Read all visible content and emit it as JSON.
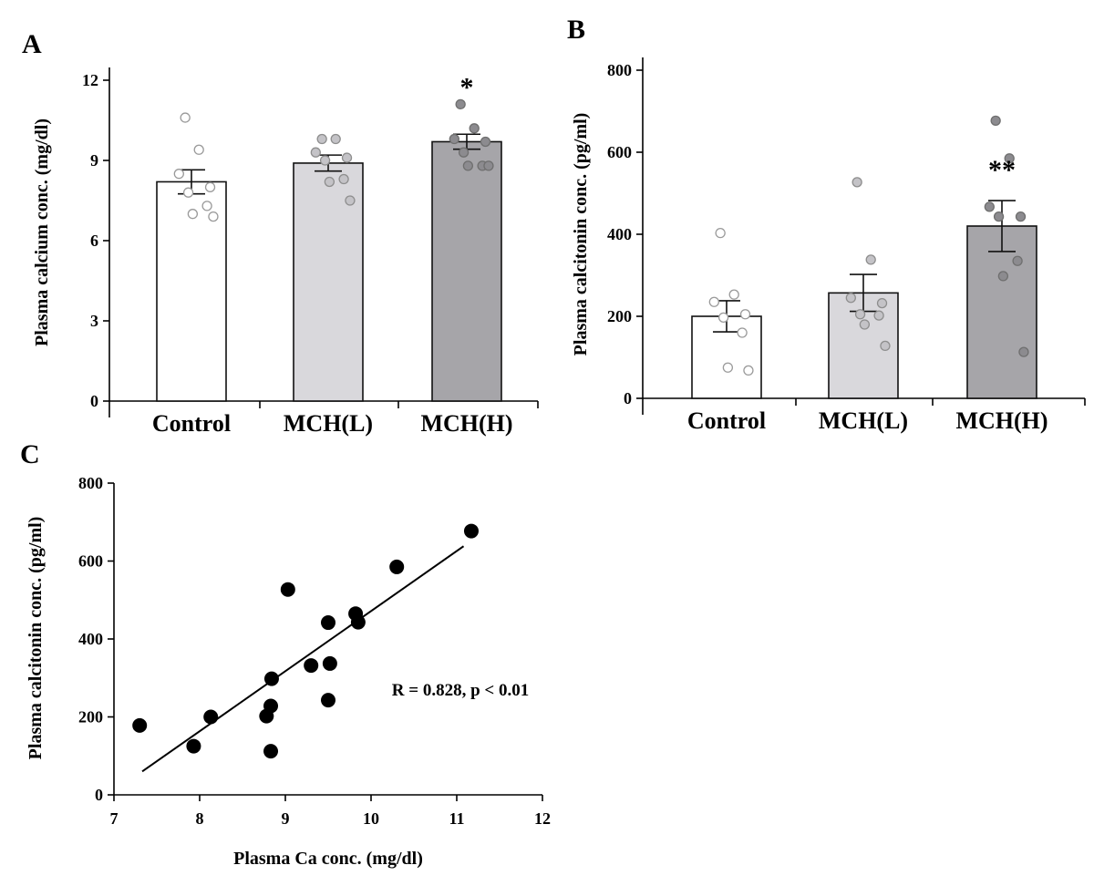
{
  "chart_data": [
    {
      "panel": "A",
      "type": "bar",
      "categories": [
        "Control",
        "MCH(L)",
        "MCH(H)"
      ],
      "values": [
        8.2,
        8.9,
        9.7
      ],
      "errors": [
        0.45,
        0.3,
        0.28
      ],
      "colors": [
        "#ffffff",
        "#d9d8dc",
        "#a6a5a9"
      ],
      "points": [
        [
          10.6,
          9.4,
          8.5,
          8.0,
          7.8,
          7.3,
          7.0,
          6.9
        ],
        [
          9.8,
          9.8,
          9.3,
          9.1,
          9.0,
          8.3,
          8.2,
          7.5
        ],
        [
          11.1,
          10.2,
          9.8,
          9.7,
          9.3,
          8.8,
          8.8,
          8.8
        ]
      ],
      "annotations": [
        "",
        "",
        "*"
      ],
      "ylabel": "Plasma calcium conc. (mg/dl)",
      "ylim": [
        0,
        12
      ],
      "yticks": [
        "0",
        "3",
        "6",
        "9",
        "12"
      ],
      "grid": false
    },
    {
      "panel": "B",
      "type": "bar",
      "categories": [
        "Control",
        "MCH(L)",
        "MCH(H)"
      ],
      "values": [
        200,
        257,
        420
      ],
      "errors": [
        38,
        45,
        62
      ],
      "colors": [
        "#ffffff",
        "#d9d8dc",
        "#a6a5a9"
      ],
      "points": [
        [
          403,
          253,
          235,
          205,
          197,
          160,
          75,
          68
        ],
        [
          527,
          338,
          245,
          232,
          205,
          202,
          180,
          128
        ],
        [
          677,
          585,
          467,
          443,
          443,
          335,
          298,
          113
        ]
      ],
      "annotations": [
        "",
        "",
        "**"
      ],
      "ylabel": "Plasma calcitonin conc. (pg/ml)",
      "ylim": [
        0,
        800
      ],
      "yticks": [
        "0",
        "200",
        "400",
        "600",
        "800"
      ],
      "grid": false
    },
    {
      "panel": "C",
      "type": "scatter",
      "x": [
        7.3,
        7.93,
        8.13,
        8.78,
        8.83,
        8.83,
        8.84,
        9.03,
        9.3,
        9.5,
        9.5,
        9.52,
        9.82,
        9.85,
        10.3,
        11.17
      ],
      "y": [
        178,
        125,
        200,
        202,
        112,
        228,
        298,
        527,
        332,
        442,
        243,
        337,
        465,
        443,
        585,
        677
      ],
      "fit": {
        "x": [
          7.33,
          11.08
        ],
        "y": [
          60,
          638
        ]
      },
      "stat": "R = 0.828, p < 0.01",
      "xlabel": "Plasma Ca conc. (mg/dl)",
      "ylabel": "Plasma calcitonin conc. (pg/ml)",
      "xlim": [
        7,
        12
      ],
      "ylim": [
        0,
        800
      ],
      "xticks": [
        "7",
        "8",
        "9",
        "10",
        "11",
        "12"
      ],
      "yticks": [
        "0",
        "200",
        "400",
        "600",
        "800"
      ],
      "grid": false
    }
  ]
}
